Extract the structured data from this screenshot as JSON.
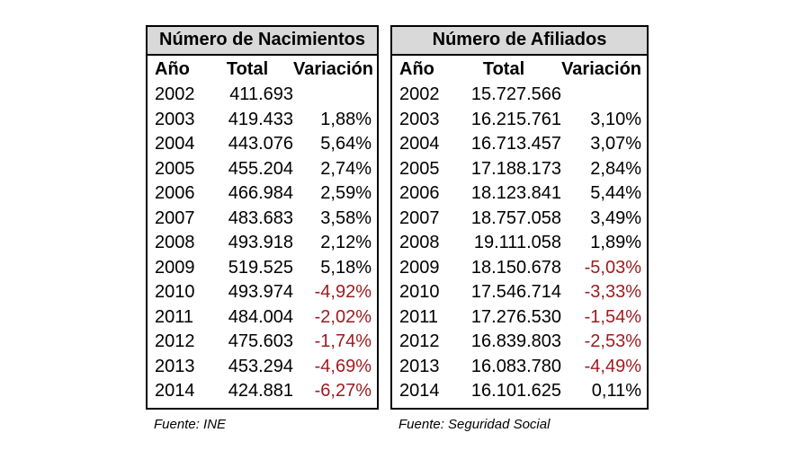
{
  "colors": {
    "header_bg": "#d9d9d9",
    "border": "#000000",
    "negative_text": "#9c1b1e",
    "default_text": "#000000"
  },
  "chart_data": [
    {
      "type": "table",
      "title": "Número de Nacimientos",
      "source": "Fuente: INE",
      "columns": [
        "Año",
        "Total",
        "Variación"
      ],
      "rows": [
        [
          "2002",
          "411.693",
          ""
        ],
        [
          "2003",
          "419.433",
          "1,88%"
        ],
        [
          "2004",
          "443.076",
          "5,64%"
        ],
        [
          "2005",
          "455.204",
          "2,74%"
        ],
        [
          "2006",
          "466.984",
          "2,59%"
        ],
        [
          "2007",
          "483.683",
          "3,58%"
        ],
        [
          "2008",
          "493.918",
          "2,12%"
        ],
        [
          "2009",
          "519.525",
          "5,18%"
        ],
        [
          "2010",
          "493.974",
          "-4,92%"
        ],
        [
          "2011",
          "484.004",
          "-2,02%"
        ],
        [
          "2012",
          "475.603",
          "-1,74%"
        ],
        [
          "2013",
          "453.294",
          "-4,69%"
        ],
        [
          "2014",
          "424.881",
          "-6,27%"
        ]
      ]
    },
    {
      "type": "table",
      "title": "Número de Afiliados",
      "source": "Fuente: Seguridad Social",
      "columns": [
        "Año",
        "Total",
        "Variación"
      ],
      "rows": [
        [
          "2002",
          "15.727.566",
          ""
        ],
        [
          "2003",
          "16.215.761",
          "3,10%"
        ],
        [
          "2004",
          "16.713.457",
          "3,07%"
        ],
        [
          "2005",
          "17.188.173",
          "2,84%"
        ],
        [
          "2006",
          "18.123.841",
          "5,44%"
        ],
        [
          "2007",
          "18.757.058",
          "3,49%"
        ],
        [
          "2008",
          "19.111.058",
          "1,89%"
        ],
        [
          "2009",
          "18.150.678",
          "-5,03%"
        ],
        [
          "2010",
          "17.546.714",
          "-3,33%"
        ],
        [
          "2011",
          "17.276.530",
          "-1,54%"
        ],
        [
          "2012",
          "16.839.803",
          "-2,53%"
        ],
        [
          "2013",
          "16.083.780",
          "-4,49%"
        ],
        [
          "2014",
          "16.101.625",
          "0,11%"
        ]
      ]
    }
  ]
}
